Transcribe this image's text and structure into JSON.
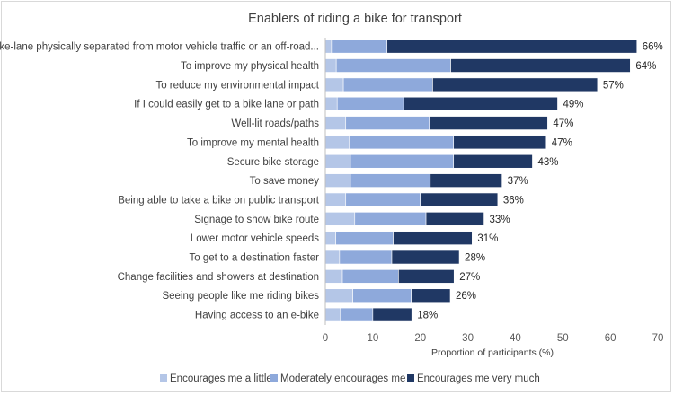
{
  "chart_data": {
    "type": "bar",
    "orientation": "horizontal",
    "stacked": true,
    "title": "Enablers of riding a bike for transport",
    "xlabel": "Proportion of participants (%)",
    "ylabel": "",
    "xlim": [
      0,
      70
    ],
    "xticks": [
      "0",
      "10",
      "20",
      "30",
      "40",
      "50",
      "60",
      "70"
    ],
    "grid": false,
    "legend_position": "bottom",
    "categories": [
      "Having a bike-lane physically separated from motor vehicle traffic or an off-road...",
      "To improve my physical health",
      "To reduce my environmental impact",
      "If I could easily get to a bike lane or path",
      "Well-lit roads/paths",
      "To improve my mental health",
      "Secure bike storage",
      "To save money",
      "Being able to take a bike on public transport",
      "Signage to show bike route",
      "Lower motor vehicle speeds",
      "To get to a destination faster",
      "Change facilities and showers at destination",
      "Seeing people like me riding bikes",
      "Having access to an e-bike"
    ],
    "series": [
      {
        "name": "Encourages me a little",
        "color": "#b4c6e7",
        "values": [
          1.3,
          2.3,
          3.8,
          2.5,
          4.3,
          5.0,
          5.3,
          5.3,
          4.3,
          6.2,
          2.2,
          3.0,
          3.6,
          5.8,
          3.2
        ]
      },
      {
        "name": "Moderately encourages me",
        "color": "#8ea9db",
        "values": [
          11.7,
          24.1,
          18.8,
          14.0,
          17.6,
          22.0,
          21.7,
          16.8,
          15.7,
          15.0,
          12.1,
          11.0,
          11.8,
          12.3,
          6.8
        ]
      },
      {
        "name": "Encourages me very much",
        "color": "#203864",
        "values": [
          52.6,
          37.8,
          34.7,
          32.4,
          24.9,
          19.5,
          16.6,
          15.1,
          16.3,
          12.2,
          16.6,
          14.2,
          11.7,
          8.2,
          8.2
        ]
      }
    ],
    "totals": [
      "66%",
      "64%",
      "57%",
      "49%",
      "47%",
      "47%",
      "43%",
      "37%",
      "36%",
      "33%",
      "31%",
      "28%",
      "27%",
      "26%",
      "18%"
    ]
  }
}
